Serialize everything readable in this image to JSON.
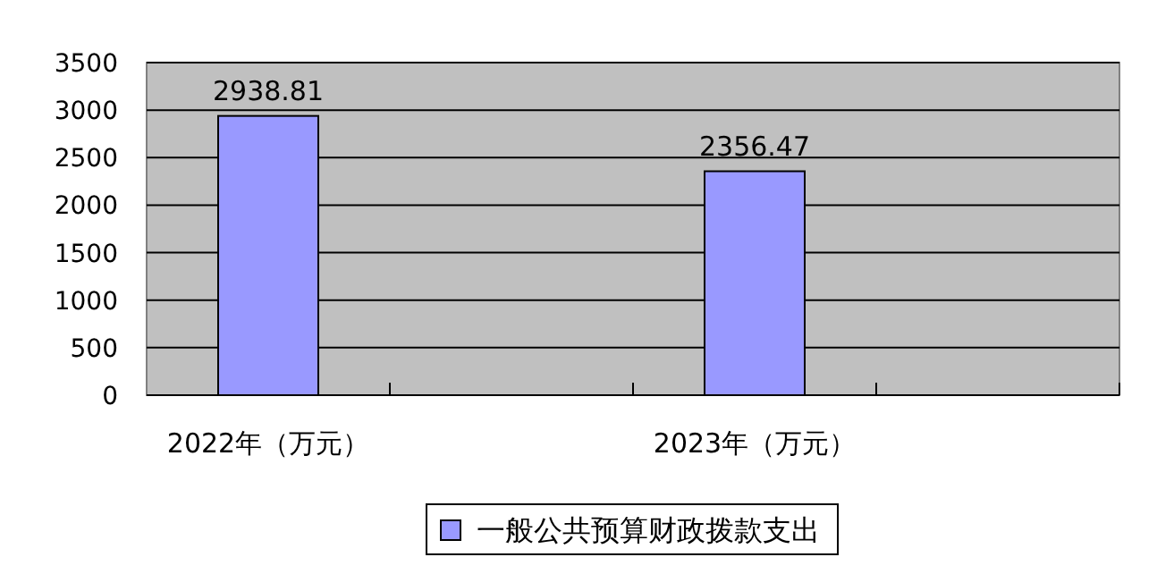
{
  "chart_data": {
    "type": "bar",
    "categories": [
      "2022年（万元）",
      null,
      "2023年（万元）",
      null
    ],
    "series": [
      {
        "name": "一般公共预算财政拨款支出",
        "color": "#9999ff",
        "values": [
          2938.81,
          null,
          2356.47,
          null
        ]
      }
    ],
    "ylim": [
      0,
      3500
    ],
    "yticks": [
      0,
      500,
      1000,
      1500,
      2000,
      2500,
      3000,
      3500
    ],
    "grid": "y",
    "legend": "bottom",
    "data_labels": true
  }
}
